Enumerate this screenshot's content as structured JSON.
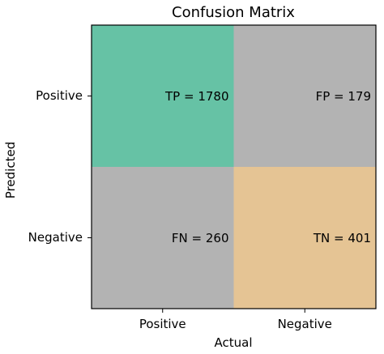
{
  "chart_data": {
    "type": "heatmap",
    "title": "Confusion Matrix",
    "xlabel": "Actual",
    "ylabel": "Predicted",
    "x_categories": [
      "Positive",
      "Negative"
    ],
    "y_categories": [
      "Positive",
      "Negative"
    ],
    "cells": [
      {
        "row": 0,
        "col": 0,
        "label": "TP = 1780",
        "value": 1780,
        "color": "#66c2a5"
      },
      {
        "row": 0,
        "col": 1,
        "label": "FP = 179",
        "value": 179,
        "color": "#b3b3b3"
      },
      {
        "row": 1,
        "col": 0,
        "label": "FN = 260",
        "value": 260,
        "color": "#b3b3b3"
      },
      {
        "row": 1,
        "col": 1,
        "label": "TN = 401",
        "value": 401,
        "color": "#e5c494"
      }
    ],
    "grid": false,
    "legend": "none"
  }
}
